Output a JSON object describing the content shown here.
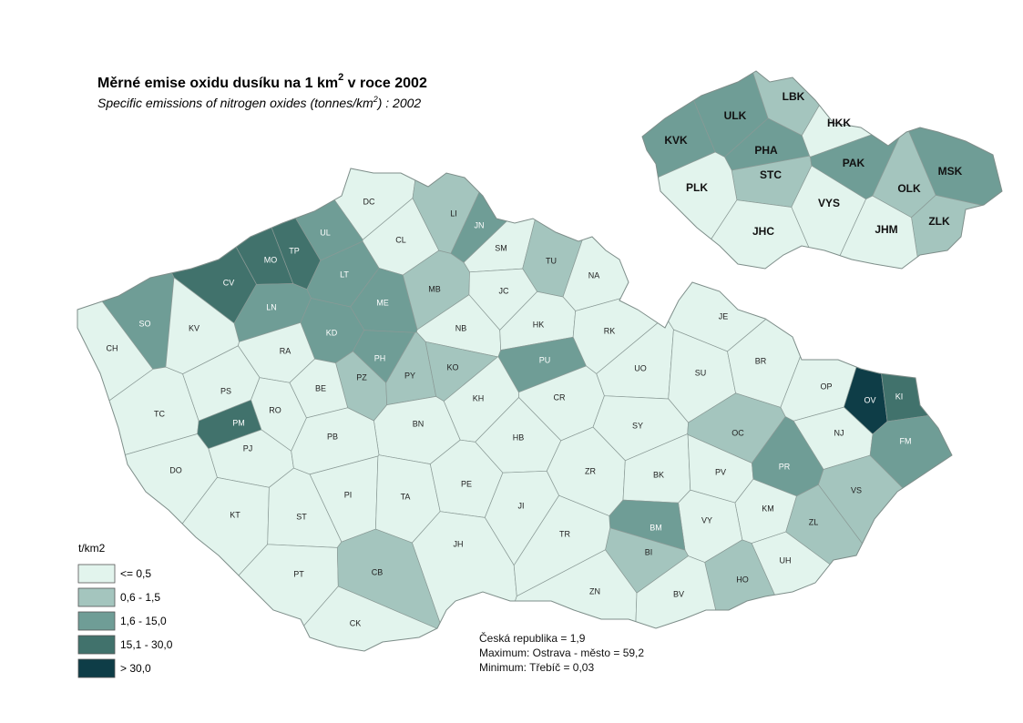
{
  "title": {
    "text": "Měrné emise oxidu dusíku na 1 km",
    "sup": "2",
    "after": " v roce 2002"
  },
  "subtitle": {
    "text": "Specific emissions of nitrogen oxides (tonnes/km",
    "sup": "2",
    "after": ") : 2002"
  },
  "map": {
    "districts": [
      {
        "label": "DC",
        "class": 0
      },
      {
        "label": "CL",
        "class": 0
      },
      {
        "label": "LI",
        "class": 1
      },
      {
        "label": "JN",
        "class": 2
      },
      {
        "label": "SM",
        "class": 0
      },
      {
        "label": "TU",
        "class": 1
      },
      {
        "label": "NA",
        "class": 0
      },
      {
        "label": "UL",
        "class": 2
      },
      {
        "label": "TP",
        "class": 3
      },
      {
        "label": "MO",
        "class": 3
      },
      {
        "label": "CV",
        "class": 3
      },
      {
        "label": "LT",
        "class": 2
      },
      {
        "label": "ME",
        "class": 2
      },
      {
        "label": "MB",
        "class": 1
      },
      {
        "label": "JC",
        "class": 0
      },
      {
        "label": "LN",
        "class": 2
      },
      {
        "label": "SO",
        "class": 2
      },
      {
        "label": "KV",
        "class": 0
      },
      {
        "label": "CH",
        "class": 0
      },
      {
        "label": "RA",
        "class": 0
      },
      {
        "label": "KD",
        "class": 2
      },
      {
        "label": "NB",
        "class": 0
      },
      {
        "label": "HK",
        "class": 0
      },
      {
        "label": "RK",
        "class": 0
      },
      {
        "label": "JE",
        "class": 0
      },
      {
        "label": "PH",
        "class": 2
      },
      {
        "label": "PZ",
        "class": 1
      },
      {
        "label": "PY",
        "class": 1
      },
      {
        "label": "KO",
        "class": 1
      },
      {
        "label": "PU",
        "class": 2
      },
      {
        "label": "UO",
        "class": 0
      },
      {
        "label": "SU",
        "class": 0
      },
      {
        "label": "BR",
        "class": 0
      },
      {
        "label": "OP",
        "class": 0
      },
      {
        "label": "OV",
        "class": 4
      },
      {
        "label": "KI",
        "class": 3
      },
      {
        "label": "TC",
        "class": 0
      },
      {
        "label": "PS",
        "class": 0
      },
      {
        "label": "RO",
        "class": 0
      },
      {
        "label": "BE",
        "class": 0
      },
      {
        "label": "PM",
        "class": 3
      },
      {
        "label": "PJ",
        "class": 0
      },
      {
        "label": "KH",
        "class": 0
      },
      {
        "label": "CR",
        "class": 0
      },
      {
        "label": "BN",
        "class": 0
      },
      {
        "label": "PB",
        "class": 0
      },
      {
        "label": "HB",
        "class": 0
      },
      {
        "label": "SY",
        "class": 0
      },
      {
        "label": "OC",
        "class": 1
      },
      {
        "label": "NJ",
        "class": 0
      },
      {
        "label": "FM",
        "class": 2
      },
      {
        "label": "DO",
        "class": 0
      },
      {
        "label": "PI",
        "class": 0
      },
      {
        "label": "TA",
        "class": 0
      },
      {
        "label": "PE",
        "class": 0
      },
      {
        "label": "ZR",
        "class": 0
      },
      {
        "label": "BK",
        "class": 0
      },
      {
        "label": "PV",
        "class": 0
      },
      {
        "label": "PR",
        "class": 2
      },
      {
        "label": "VS",
        "class": 1
      },
      {
        "label": "KT",
        "class": 0
      },
      {
        "label": "ST",
        "class": 0
      },
      {
        "label": "JI",
        "class": 0
      },
      {
        "label": "KM",
        "class": 0
      },
      {
        "label": "VY",
        "class": 0
      },
      {
        "label": "ZL",
        "class": 1
      },
      {
        "label": "BM",
        "class": 2
      },
      {
        "label": "BI",
        "class": 1
      },
      {
        "label": "JH",
        "class": 0
      },
      {
        "label": "TR",
        "class": 0
      },
      {
        "label": "UH",
        "class": 0
      },
      {
        "label": "PT",
        "class": 0
      },
      {
        "label": "CB",
        "class": 1
      },
      {
        "label": "HO",
        "class": 1
      },
      {
        "label": "ZN",
        "class": 0
      },
      {
        "label": "BV",
        "class": 0
      },
      {
        "label": "CK",
        "class": 0
      }
    ],
    "regions": [
      {
        "label": "ULK",
        "class": 2
      },
      {
        "label": "LBK",
        "class": 1
      },
      {
        "label": "HKK",
        "class": 0
      },
      {
        "label": "KVK",
        "class": 2
      },
      {
        "label": "PHA",
        "class": 2
      },
      {
        "label": "STC",
        "class": 1
      },
      {
        "label": "PAK",
        "class": 2
      },
      {
        "label": "MSK",
        "class": 2
      },
      {
        "label": "PLK",
        "class": 0
      },
      {
        "label": "VYS",
        "class": 0
      },
      {
        "label": "OLK",
        "class": 1
      },
      {
        "label": "ZLK",
        "class": 1
      },
      {
        "label": "JHC",
        "class": 0
      },
      {
        "label": "JHM",
        "class": 0
      }
    ]
  },
  "legend": {
    "title": "t/km2",
    "items": [
      {
        "label": "<= 0,5",
        "color": "#e2f4ed"
      },
      {
        "label": "0,6 - 1,5",
        "color": "#a4c5be"
      },
      {
        "label": "1,6 - 15,0",
        "color": "#6f9d96"
      },
      {
        "label": "15,1 - 30,0",
        "color": "#41726c"
      },
      {
        "label": "> 30,0",
        "color": "#0e3d47"
      }
    ]
  },
  "notes": [
    "Česká republika = 1,9",
    "Maximum: Ostrava - město  = 59,2",
    "Minimum: Třebíč  = 0,03"
  ]
}
